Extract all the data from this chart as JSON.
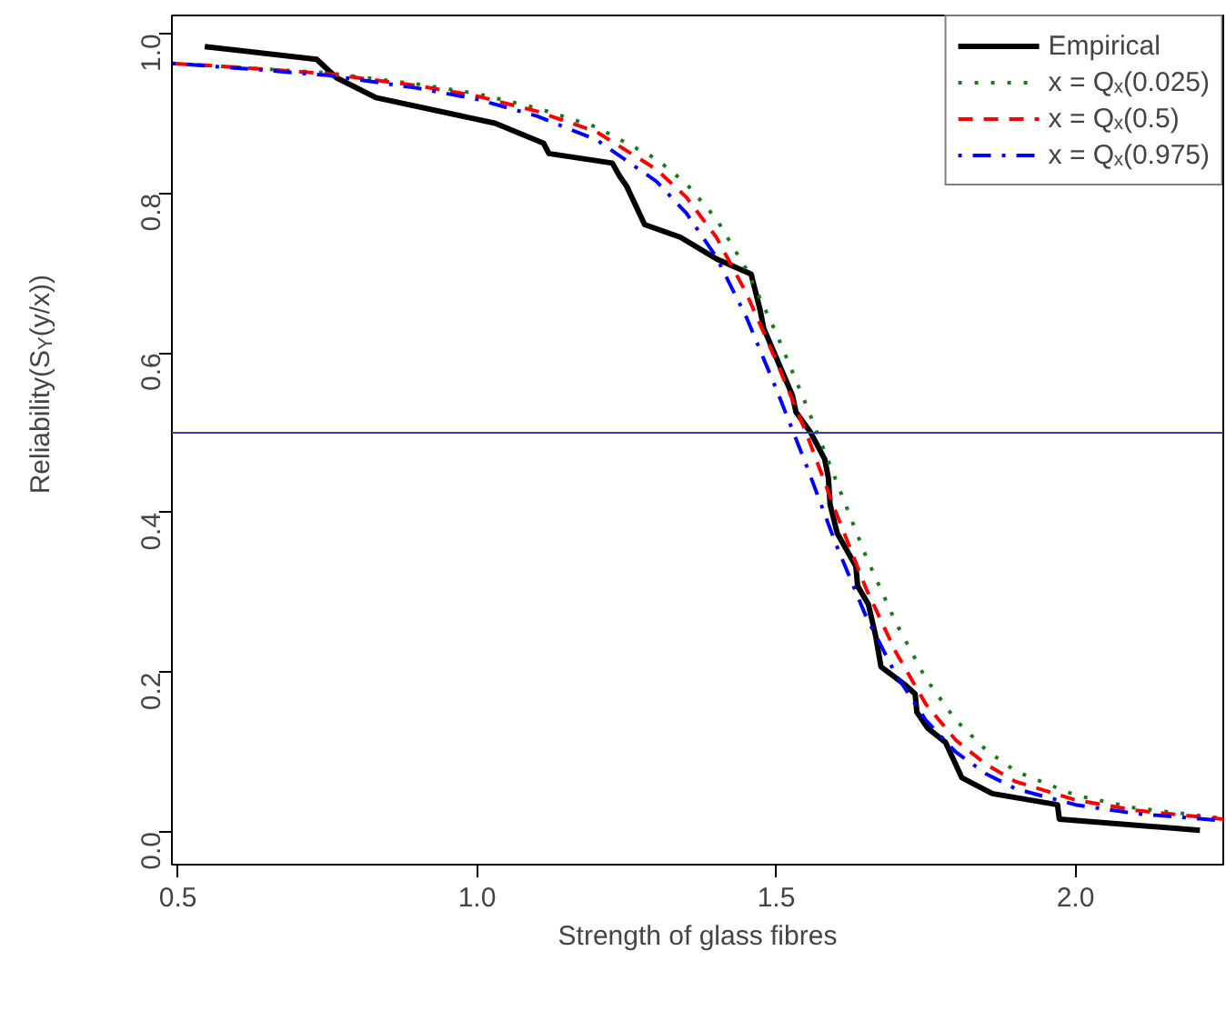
{
  "chart_data": {
    "type": "line",
    "xlabel": "Strength of glass fibres",
    "ylabel": "Reliability(S$_{Y}$(y/x))",
    "xlim": [
      0.49,
      2.247
    ],
    "ylim": [
      -0.041,
      1.023
    ],
    "xticks": [
      0.5,
      {
        "value": 1,
        "label": "1.0"
      },
      1.5,
      {
        "value": 2,
        "label": "2.0"
      }
    ],
    "yticks": [
      {
        "value": 0,
        "label": "0.0"
      },
      0.2,
      0.4,
      0.6,
      0.8,
      {
        "value": 1,
        "label": "1.0"
      }
    ],
    "grid": false,
    "legend": "top right",
    "ref_lines": [
      {
        "axis": "y",
        "value": 0.5,
        "color": "#3a3ab8"
      }
    ],
    "series": [
      {
        "name": "Empirical",
        "color": "#000000",
        "line_style": "solid",
        "x": [
          0.545,
          0.732,
          0.765,
          0.831,
          1.03,
          1.111,
          1.12,
          1.226,
          1.238,
          1.25,
          1.28,
          1.34,
          1.4,
          1.458,
          1.464,
          1.473,
          1.479,
          1.527,
          1.533,
          1.557,
          1.581,
          1.587,
          1.59,
          1.602,
          1.633,
          1.636,
          1.654,
          1.666,
          1.675,
          1.714,
          1.732,
          1.735,
          1.753,
          1.783,
          1.81,
          1.861,
          1.97,
          1.973,
          2.208
        ],
        "values": [
          0.984,
          0.968,
          0.945,
          0.92,
          0.888,
          0.863,
          0.85,
          0.838,
          0.822,
          0.809,
          0.761,
          0.745,
          0.718,
          0.699,
          0.681,
          0.654,
          0.631,
          0.547,
          0.526,
          0.501,
          0.467,
          0.444,
          0.41,
          0.374,
          0.333,
          0.308,
          0.285,
          0.246,
          0.207,
          0.185,
          0.173,
          0.15,
          0.13,
          0.112,
          0.068,
          0.048,
          0.034,
          0.016,
          0.002
        ]
      },
      {
        "name": "x = Qₓ(0.025)",
        "color": "#1a7a1a",
        "line_style": "dotted",
        "x": [
          0.49,
          0.6,
          0.75,
          0.9,
          1.0,
          1.1,
          1.2,
          1.3,
          1.35,
          1.4,
          1.45,
          1.5,
          1.55,
          1.6,
          1.65,
          1.7,
          1.75,
          1.8,
          1.85,
          1.9,
          2.0,
          2.1,
          2.247
        ],
        "values": [
          0.963,
          0.958,
          0.951,
          0.937,
          0.925,
          0.907,
          0.883,
          0.843,
          0.812,
          0.768,
          0.705,
          0.625,
          0.535,
          0.44,
          0.345,
          0.262,
          0.192,
          0.14,
          0.103,
          0.076,
          0.046,
          0.03,
          0.017
        ]
      },
      {
        "name": "x = Qₓ(0.5)",
        "color": "#ff0000",
        "line_style": "dashed",
        "x": [
          0.49,
          0.6,
          0.75,
          0.9,
          1.0,
          1.1,
          1.2,
          1.3,
          1.35,
          1.4,
          1.45,
          1.5,
          1.55,
          1.6,
          1.65,
          1.7,
          1.75,
          1.8,
          1.85,
          1.9,
          2.0,
          2.1,
          2.247
        ],
        "values": [
          0.963,
          0.958,
          0.95,
          0.935,
          0.922,
          0.903,
          0.877,
          0.83,
          0.795,
          0.745,
          0.675,
          0.59,
          0.5,
          0.4,
          0.305,
          0.225,
          0.16,
          0.115,
          0.085,
          0.063,
          0.04,
          0.027,
          0.016
        ]
      },
      {
        "name": "x = Qₓ(0.975)",
        "color": "#0000ff",
        "line_style": "dashdot",
        "x": [
          0.49,
          0.6,
          0.75,
          0.9,
          1.0,
          1.1,
          1.2,
          1.3,
          1.35,
          1.4,
          1.45,
          1.5,
          1.55,
          1.6,
          1.65,
          1.7,
          1.75,
          1.8,
          1.85,
          1.9,
          2.0,
          2.1,
          2.247
        ],
        "values": [
          0.963,
          0.957,
          0.948,
          0.932,
          0.918,
          0.897,
          0.867,
          0.815,
          0.775,
          0.72,
          0.645,
          0.555,
          0.46,
          0.36,
          0.27,
          0.197,
          0.14,
          0.1,
          0.073,
          0.054,
          0.034,
          0.023,
          0.014
        ]
      }
    ]
  }
}
